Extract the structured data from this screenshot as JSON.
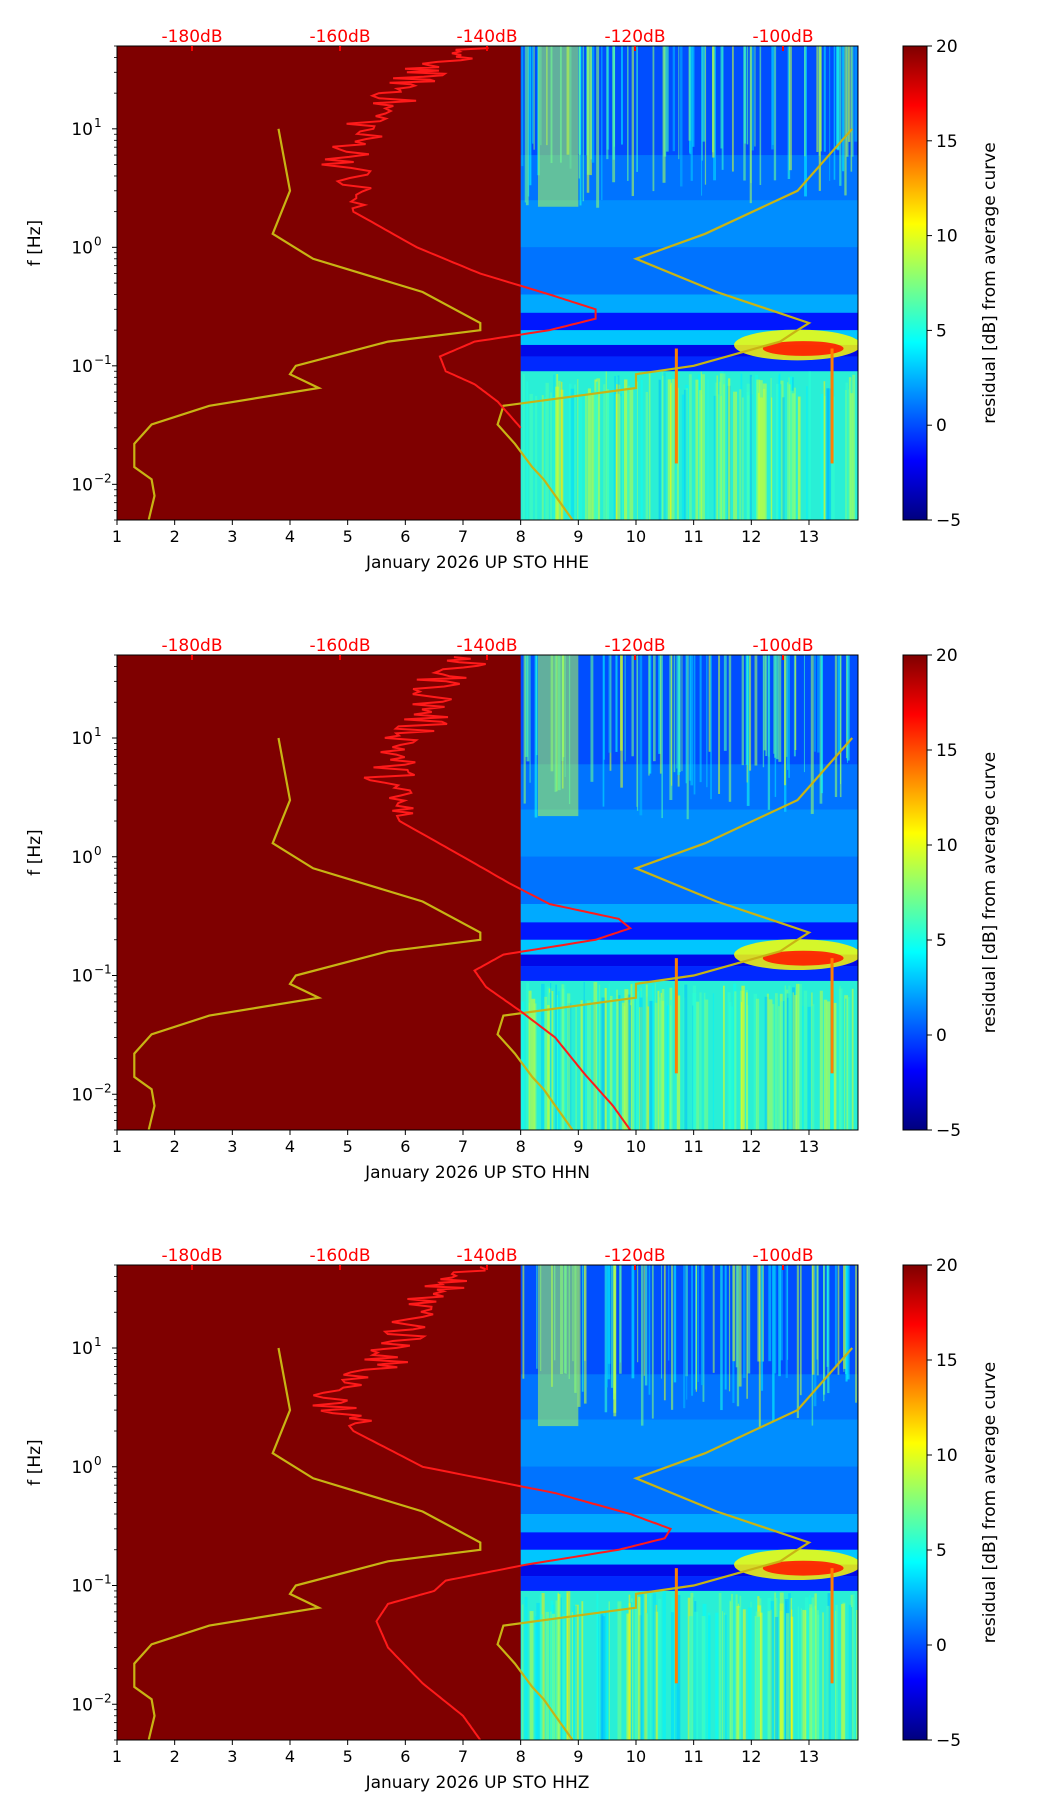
{
  "colorbar_colors": [
    "#00007f",
    "#0000ff",
    "#007fff",
    "#00ffff",
    "#7fff7f",
    "#ffff00",
    "#ff7f00",
    "#ff0000",
    "#7f0000"
  ],
  "chart_data": [
    {
      "type": "heatmap",
      "title": "",
      "xlabel": "January 2026 UP STO  HHE",
      "ylabel": "f [Hz]",
      "x_ticks": [
        "1",
        "2",
        "3",
        "4",
        "5",
        "6",
        "7",
        "8",
        "9",
        "10",
        "11",
        "12",
        "13"
      ],
      "y_ticks": [
        "10^-2",
        "10^-1",
        "10^0",
        "10^1"
      ],
      "top_ticks": [
        "-180dB",
        "-160dB",
        "-140dB",
        "-120dB",
        "-100dB"
      ],
      "colorbar_label": "residual [dB] from average curve",
      "colorbar_ticks": [
        "20",
        "15",
        "10",
        "5",
        "0",
        "−5"
      ],
      "xlim": [
        1,
        13.85
      ],
      "ylim_hz": [
        0.005,
        50
      ],
      "clim": [
        -5,
        20
      ],
      "saturated_until_day": 8,
      "event_days": [
        10.7,
        13.4
      ],
      "reference_curve": {
        "name": "low/high noise model",
        "freq_hz": [
          10,
          3,
          1.3,
          0.8,
          0.42,
          0.23,
          0.2,
          0.16,
          0.1,
          0.085,
          0.065,
          0.046,
          0.032,
          0.022,
          0.014,
          0.011,
          0.008,
          0.005
        ],
        "left_day": [
          3.8,
          4.0,
          3.7,
          4.4,
          6.3,
          7.3,
          7.3,
          5.7,
          4.1,
          4.0,
          4.5,
          2.6,
          1.6,
          1.3,
          1.3,
          1.6,
          1.65,
          1.55
        ],
        "right_day": [
          13.75,
          12.8,
          11.2,
          10.0,
          11.4,
          13.0,
          12.8,
          12.5,
          11.0,
          10.0,
          10.0,
          7.7,
          7.6,
          7.9,
          8.2,
          8.4,
          8.6,
          8.9
        ]
      },
      "average_curve": {
        "freq_hz": [
          48,
          30,
          20,
          10,
          5,
          2,
          1,
          0.6,
          0.4,
          0.3,
          0.25,
          0.2,
          0.16,
          0.12,
          0.09,
          0.07,
          0.05,
          0.03
        ],
        "day": [
          7.0,
          6.2,
          5.8,
          5.2,
          4.9,
          5.1,
          6.2,
          7.3,
          8.5,
          9.3,
          9.3,
          8.5,
          7.2,
          6.6,
          6.7,
          7.2,
          7.6,
          8.0
        ]
      }
    },
    {
      "type": "heatmap",
      "title": "",
      "xlabel": "January 2026 UP STO  HHN",
      "ylabel": "f [Hz]",
      "x_ticks": [
        "1",
        "2",
        "3",
        "4",
        "5",
        "6",
        "7",
        "8",
        "9",
        "10",
        "11",
        "12",
        "13"
      ],
      "y_ticks": [
        "10^-2",
        "10^-1",
        "10^0",
        "10^1"
      ],
      "top_ticks": [
        "-180dB",
        "-160dB",
        "-140dB",
        "-120dB",
        "-100dB"
      ],
      "colorbar_label": "residual [dB] from average curve",
      "colorbar_ticks": [
        "20",
        "15",
        "10",
        "5",
        "0",
        "−5"
      ],
      "xlim": [
        1,
        13.85
      ],
      "ylim_hz": [
        0.005,
        50
      ],
      "clim": [
        -5,
        20
      ],
      "saturated_until_day": 8,
      "event_days": [
        10.7,
        13.4
      ],
      "reference_curve": {
        "name": "low/high noise model",
        "freq_hz": [
          10,
          3,
          1.3,
          0.8,
          0.42,
          0.23,
          0.2,
          0.16,
          0.1,
          0.085,
          0.065,
          0.046,
          0.032,
          0.022,
          0.014,
          0.011,
          0.008,
          0.005
        ],
        "left_day": [
          3.8,
          4.0,
          3.7,
          4.4,
          6.3,
          7.3,
          7.3,
          5.7,
          4.1,
          4.0,
          4.5,
          2.6,
          1.6,
          1.3,
          1.3,
          1.6,
          1.65,
          1.55
        ],
        "right_day": [
          13.75,
          12.8,
          11.2,
          10.0,
          11.4,
          13.0,
          12.8,
          12.5,
          11.0,
          10.0,
          10.0,
          7.7,
          7.6,
          7.9,
          8.2,
          8.4,
          8.6,
          8.9
        ]
      },
      "average_curve": {
        "freq_hz": [
          48,
          30,
          15,
          8,
          4,
          2,
          1,
          0.6,
          0.4,
          0.3,
          0.25,
          0.2,
          0.15,
          0.11,
          0.08,
          0.05,
          0.03,
          0.015,
          0.008,
          0.005
        ],
        "day": [
          7.0,
          6.5,
          6.3,
          5.8,
          5.6,
          5.9,
          7.0,
          7.8,
          8.5,
          9.7,
          9.9,
          9.3,
          7.7,
          7.2,
          7.4,
          8.0,
          8.6,
          9.1,
          9.6,
          9.9
        ]
      }
    },
    {
      "type": "heatmap",
      "title": "",
      "xlabel": "January 2026 UP STO  HHZ",
      "ylabel": "f [Hz]",
      "x_ticks": [
        "1",
        "2",
        "3",
        "4",
        "5",
        "6",
        "7",
        "8",
        "9",
        "10",
        "11",
        "12",
        "13"
      ],
      "y_ticks": [
        "10^-2",
        "10^-1",
        "10^0",
        "10^1"
      ],
      "top_ticks": [
        "-180dB",
        "-160dB",
        "-140dB",
        "-120dB",
        "-100dB"
      ],
      "colorbar_label": "residual [dB] from average curve",
      "colorbar_ticks": [
        "20",
        "15",
        "10",
        "5",
        "0",
        "−5"
      ],
      "xlim": [
        1,
        13.85
      ],
      "ylim_hz": [
        0.005,
        50
      ],
      "clim": [
        -5,
        20
      ],
      "saturated_until_day": 8,
      "event_days": [
        10.7,
        13.4
      ],
      "reference_curve": {
        "name": "low/high noise model",
        "freq_hz": [
          10,
          3,
          1.3,
          0.8,
          0.42,
          0.23,
          0.2,
          0.16,
          0.1,
          0.085,
          0.065,
          0.046,
          0.032,
          0.022,
          0.014,
          0.011,
          0.008,
          0.005
        ],
        "left_day": [
          3.8,
          4.0,
          3.7,
          4.4,
          6.3,
          7.3,
          7.3,
          5.7,
          4.1,
          4.0,
          4.5,
          2.6,
          1.6,
          1.3,
          1.3,
          1.6,
          1.65,
          1.55
        ],
        "right_day": [
          13.75,
          12.8,
          11.2,
          10.0,
          11.4,
          13.0,
          12.8,
          12.5,
          11.0,
          10.0,
          10.0,
          7.7,
          7.6,
          7.9,
          8.2,
          8.4,
          8.6,
          8.9
        ]
      },
      "average_curve": {
        "freq_hz": [
          48,
          30,
          15,
          8,
          4,
          2,
          1,
          0.6,
          0.4,
          0.3,
          0.25,
          0.2,
          0.15,
          0.11,
          0.09,
          0.07,
          0.05,
          0.03,
          0.015,
          0.008,
          0.005
        ],
        "day": [
          7.0,
          6.4,
          6.0,
          5.6,
          4.6,
          5.1,
          6.3,
          8.6,
          9.9,
          10.6,
          10.5,
          9.7,
          8.1,
          6.7,
          6.5,
          5.7,
          5.5,
          5.7,
          6.3,
          7.0,
          7.3
        ]
      }
    }
  ]
}
